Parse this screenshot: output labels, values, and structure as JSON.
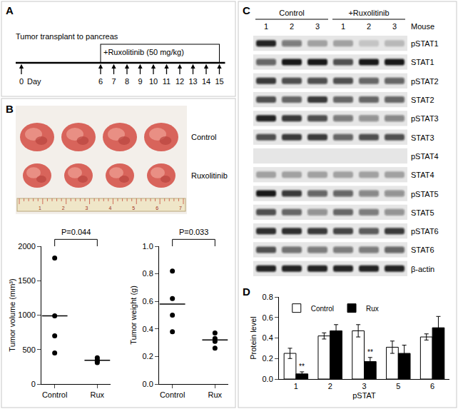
{
  "panels": {
    "A": {
      "label": "A",
      "start_label": "Tumor transplant to pancreas",
      "treatment_label": "+Ruxolitinib (50 mg/kg)",
      "day_label": "Day",
      "days": [
        0,
        6,
        7,
        8,
        9,
        10,
        11,
        12,
        13,
        14,
        15
      ],
      "treatment_days": [
        6,
        15
      ]
    },
    "B": {
      "label": "B",
      "photo": {
        "rows": [
          "Control",
          "Ruxolitinib"
        ],
        "ruler_labels": [
          "1",
          "2",
          "3",
          "4",
          "5",
          "6",
          "7"
        ]
      }
    },
    "C": {
      "label": "C",
      "lane_header": "Mouse",
      "groups": [
        {
          "name": "Control",
          "lanes": [
            "1",
            "2",
            "3"
          ]
        },
        {
          "name": "+Ruxolitinib",
          "lanes": [
            "1",
            "2",
            "3"
          ]
        }
      ],
      "rows": [
        {
          "name": "pSTAT1",
          "bands": [
            0.9,
            0.5,
            0.3,
            0.3,
            0.15,
            0.2
          ]
        },
        {
          "name": "STAT1",
          "bands": [
            0.6,
            0.95,
            0.95,
            0.7,
            0.95,
            0.95
          ]
        },
        {
          "name": "pSTAT2",
          "bands": [
            0.8,
            0.7,
            0.7,
            0.7,
            0.6,
            0.6
          ]
        },
        {
          "name": "STAT2",
          "bands": [
            0.7,
            0.6,
            0.8,
            0.6,
            0.6,
            0.6
          ]
        },
        {
          "name": "pSTAT3",
          "bands": [
            0.9,
            0.8,
            0.7,
            0.5,
            0.4,
            0.45
          ]
        },
        {
          "name": "STAT3",
          "bands": [
            0.7,
            0.8,
            0.8,
            0.6,
            0.7,
            0.7
          ]
        },
        {
          "name": "pSTAT4",
          "bands": [
            0,
            0,
            0,
            0,
            0,
            0
          ]
        },
        {
          "name": "STAT4",
          "bands": [
            0.3,
            0.3,
            0.3,
            0.3,
            0.3,
            0.3
          ]
        },
        {
          "name": "pSTAT5",
          "bands": [
            0.95,
            0.8,
            0.6,
            0.6,
            0.45,
            0.4
          ]
        },
        {
          "name": "STAT5",
          "bands": [
            0.7,
            0.6,
            0.4,
            0.6,
            0.5,
            0.4
          ]
        },
        {
          "name": "pSTAT6",
          "bands": [
            0.85,
            0.85,
            0.8,
            0.75,
            0.65,
            0.8
          ]
        },
        {
          "name": "STAT6",
          "bands": [
            0.7,
            0.55,
            0.5,
            0.5,
            0.5,
            0.6
          ]
        },
        {
          "name": "β-actin",
          "bands": [
            0.9,
            0.9,
            0.9,
            0.9,
            0.9,
            0.9
          ]
        }
      ]
    },
    "D": {
      "label": "D"
    }
  },
  "chart_data": [
    {
      "type": "scatter",
      "y_label": "Tumor volume (mm³)",
      "categories": [
        "Control",
        "Rux"
      ],
      "values": [
        [
          1830,
          990,
          700,
          450
        ],
        [
          380,
          350,
          330,
          310
        ]
      ],
      "means": [
        990,
        345
      ],
      "color": "#000000",
      "marker": "circle",
      "ylim": [
        0,
        2000
      ],
      "yticks": [
        0,
        500,
        1000,
        1500,
        2000
      ],
      "grid": false,
      "annotations": [
        {
          "text": "P=0.044"
        }
      ]
    },
    {
      "type": "scatter",
      "y_label": "Tumor weight (g)",
      "categories": [
        "Control",
        "Rux"
      ],
      "values": [
        [
          0.82,
          0.62,
          0.5,
          0.38
        ],
        [
          0.37,
          0.33,
          0.31,
          0.26
        ]
      ],
      "means": [
        0.58,
        0.32
      ],
      "color": "#000000",
      "marker": "circle",
      "ylim": [
        0,
        1
      ],
      "yticks": [
        {
          "value": 0,
          "label": "0.0"
        },
        0.2,
        0.4,
        0.6,
        0.8,
        {
          "value": 1,
          "label": "1.0"
        }
      ],
      "grid": false,
      "annotations": [
        {
          "text": "P=0.033"
        }
      ]
    },
    {
      "type": "bar",
      "y_label": "Protein level",
      "x_label": "pSTAT",
      "categories": [
        "1",
        "2",
        "3",
        "5",
        "6"
      ],
      "series": [
        {
          "name": "Control",
          "color": "#ffffff",
          "values": [
            0.25,
            0.42,
            0.47,
            0.31,
            0.41
          ],
          "errors": [
            0.05,
            0.03,
            0.06,
            0.06,
            0.03
          ]
        },
        {
          "name": "Rux",
          "color": "#000000",
          "values": [
            0.05,
            0.47,
            0.17,
            0.25,
            0.5
          ],
          "errors": [
            0.02,
            0.06,
            0.04,
            0.08,
            0.11
          ]
        }
      ],
      "ylim": [
        0,
        0.8
      ],
      "yticks": [
        {
          "value": 0,
          "label": "0.0"
        },
        0.2,
        0.4,
        0.6,
        0.8
      ],
      "grid": false,
      "legend": "top-left",
      "annotations": [
        {
          "category": "1",
          "series": "Rux",
          "text": "**"
        },
        {
          "category": "3",
          "series": "Rux",
          "text": "**"
        }
      ]
    }
  ]
}
